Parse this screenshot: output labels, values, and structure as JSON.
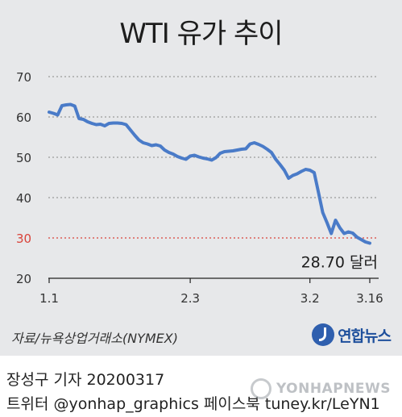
{
  "chart_data": {
    "type": "line",
    "title": "WTI 유가 추이",
    "ylim": [
      20,
      70
    ],
    "yticks": [
      20,
      30,
      40,
      50,
      60,
      70
    ],
    "highlight_line": 30,
    "xticks": [
      {
        "label": "1.1",
        "day": 0
      },
      {
        "label": "2.3",
        "day": 33
      },
      {
        "label": "3.2",
        "day": 61
      },
      {
        "label": "3.16",
        "day": 75
      }
    ],
    "end_label": "28.70 달러",
    "grid": true,
    "series": [
      {
        "points": [
          [
            0,
            61.2
          ],
          [
            1,
            60.9
          ],
          [
            2,
            60.5
          ],
          [
            3,
            62.8
          ],
          [
            4,
            63.0
          ],
          [
            5,
            63.1
          ],
          [
            6,
            62.7
          ],
          [
            7,
            59.6
          ],
          [
            8,
            59.4
          ],
          [
            9,
            58.8
          ],
          [
            10,
            58.4
          ],
          [
            11,
            58.1
          ],
          [
            12,
            58.2
          ],
          [
            13,
            57.8
          ],
          [
            14,
            58.4
          ],
          [
            15,
            58.5
          ],
          [
            16,
            58.5
          ],
          [
            17,
            58.4
          ],
          [
            18,
            58.1
          ],
          [
            19,
            56.8
          ],
          [
            20,
            55.5
          ],
          [
            21,
            54.3
          ],
          [
            22,
            53.6
          ],
          [
            23,
            53.3
          ],
          [
            24,
            52.9
          ],
          [
            25,
            53.1
          ],
          [
            26,
            52.8
          ],
          [
            27,
            51.8
          ],
          [
            28,
            51.2
          ],
          [
            29,
            50.8
          ],
          [
            30,
            50.2
          ],
          [
            31,
            49.8
          ],
          [
            32,
            49.5
          ],
          [
            33,
            50.3
          ],
          [
            34,
            50.5
          ],
          [
            35,
            50.1
          ],
          [
            36,
            49.8
          ],
          [
            37,
            49.6
          ],
          [
            38,
            49.3
          ],
          [
            39,
            49.9
          ],
          [
            40,
            51.0
          ],
          [
            41,
            51.4
          ],
          [
            42,
            51.5
          ],
          [
            43,
            51.6
          ],
          [
            44,
            51.8
          ],
          [
            45,
            52.0
          ],
          [
            46,
            52.1
          ],
          [
            47,
            53.3
          ],
          [
            48,
            53.6
          ],
          [
            49,
            53.2
          ],
          [
            50,
            52.7
          ],
          [
            51,
            52.0
          ],
          [
            52,
            51.2
          ],
          [
            53,
            49.5
          ],
          [
            54,
            48.2
          ],
          [
            55,
            46.8
          ],
          [
            56,
            44.8
          ],
          [
            57,
            45.5
          ],
          [
            58,
            45.9
          ],
          [
            59,
            46.5
          ],
          [
            60,
            47.0
          ],
          [
            61,
            46.8
          ],
          [
            62,
            46.2
          ],
          [
            63,
            41.3
          ],
          [
            64,
            36.3
          ],
          [
            65,
            33.8
          ],
          [
            66,
            31.1
          ],
          [
            67,
            34.4
          ],
          [
            68,
            32.5
          ],
          [
            69,
            31.1
          ],
          [
            70,
            31.5
          ],
          [
            71,
            31.2
          ],
          [
            72,
            30.2
          ],
          [
            73,
            29.6
          ],
          [
            74,
            29.0
          ],
          [
            75,
            28.7
          ]
        ]
      }
    ]
  },
  "footer": {
    "source": "자료/뉴욕상업거래소(NYMEX)",
    "brand": "연합뉴스",
    "credit_line1": "장성구 기자  20200317",
    "credit_line2": "트위터 @yonhap_graphics  페이스북 tuney.kr/LeYN1",
    "watermark": "YONHAPNEWS"
  },
  "colors": {
    "line": "#4a7bc8",
    "highlight": "#d9433a",
    "grid": "#9a9a9a",
    "background": "#e7e8ea"
  }
}
